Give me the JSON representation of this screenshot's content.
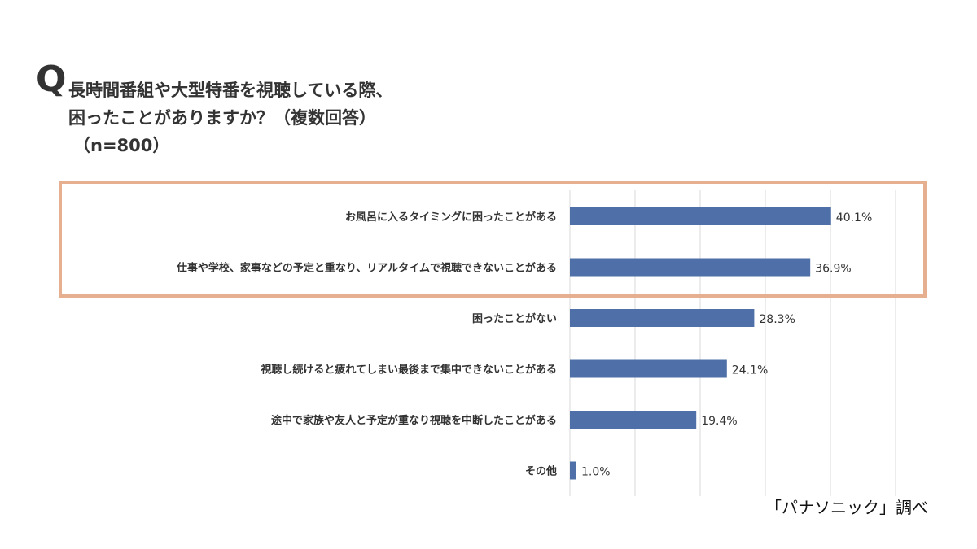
{
  "question": {
    "mark": "Q",
    "line1": "長時間番組や大型特番を視聴している際、",
    "line2": "困ったことがありますか？（複数回答）",
    "line3": "（n=800）"
  },
  "source": "「パナソニック」調べ",
  "colors": {
    "bar": "#4E6FA8",
    "highlight_border": "#E6B090",
    "grid": "#D9D9D9",
    "text": "#333333"
  },
  "chart_data": {
    "type": "bar",
    "orientation": "horizontal",
    "categories": [
      "お風呂に入るタイミングに困ったことがある",
      "仕事や学校、家事などの予定と重なり、リアルタイムで視聴できないことがある",
      "困ったことがない",
      "視聴し続けると疲れてしまい最後まで集中できないことがある",
      "途中で家族や友人と予定が重なり視聴を中断したことがある",
      "その他"
    ],
    "values": [
      40.1,
      36.9,
      28.3,
      24.1,
      19.4,
      1.0
    ],
    "value_labels": [
      "40.1%",
      "36.9%",
      "28.3%",
      "24.1%",
      "19.4%",
      "1.0%"
    ],
    "xlim": [
      0,
      50
    ],
    "grid": true,
    "highlighted_categories": [
      0,
      1
    ]
  }
}
